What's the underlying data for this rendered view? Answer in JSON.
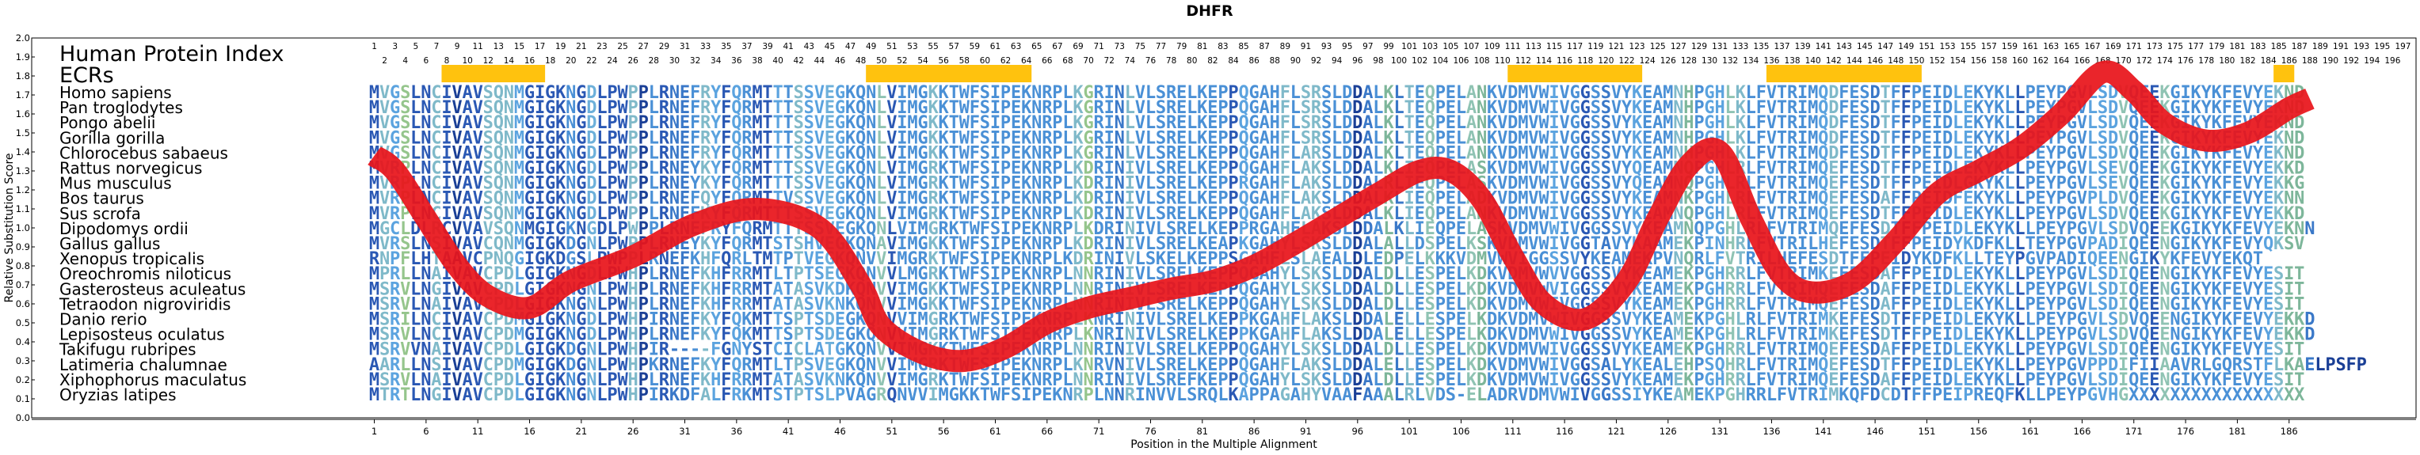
{
  "chart_data": {
    "type": "line",
    "title": "DHFR",
    "header_labels": {
      "index": "Human Protein Index",
      "ecrs": "ECRs"
    },
    "xlabel": "Position in the Multiple Alignment",
    "ylabel": "Relative Substitution Score",
    "ylim": [
      0.0,
      2.0
    ],
    "yticks": [
      "0.0",
      "0.1",
      "0.2",
      "0.3",
      "0.4",
      "0.5",
      "0.6",
      "0.7",
      "0.8",
      "0.9",
      "1.0",
      "1.1",
      "1.2",
      "1.3",
      "1.4",
      "1.5",
      "1.6",
      "1.7",
      "1.8",
      "1.9",
      "2.0"
    ],
    "xlim": [
      1,
      197
    ],
    "xticks": [
      1,
      6,
      11,
      16,
      21,
      26,
      31,
      36,
      41,
      46,
      51,
      56,
      61,
      66,
      71,
      76,
      81,
      86,
      91,
      96,
      101,
      106,
      111,
      116,
      121,
      126,
      131,
      136,
      141,
      146,
      151,
      156,
      161,
      166,
      171,
      176,
      181,
      186
    ],
    "human_index_min": 1,
    "human_index_max": 197,
    "ecr_regions": [
      [
        8,
        17
      ],
      [
        49,
        64
      ],
      [
        111,
        123
      ],
      [
        136,
        150
      ],
      [
        185,
        186
      ]
    ],
    "series": [
      {
        "x": [
          1,
          3,
          6,
          9,
          12,
          16,
          20,
          26,
          32,
          38,
          44,
          48,
          50,
          54,
          58,
          62,
          66,
          70,
          74,
          78,
          82,
          86,
          90,
          94,
          98,
          102,
          105,
          108,
          111,
          114,
          118,
          122,
          125,
          128,
          131,
          134,
          137,
          140,
          144,
          148,
          152,
          156,
          160,
          164,
          168,
          171,
          174,
          178,
          182,
          186,
          188
        ],
        "y": [
          1.38,
          1.3,
          1.05,
          0.8,
          0.64,
          0.58,
          0.72,
          0.85,
          1.02,
          1.1,
          1.0,
          0.7,
          0.48,
          0.34,
          0.3,
          0.37,
          0.5,
          0.58,
          0.63,
          0.68,
          0.72,
          0.8,
          0.92,
          1.05,
          1.18,
          1.3,
          1.3,
          1.15,
          0.85,
          0.6,
          0.52,
          0.72,
          1.05,
          1.33,
          1.4,
          1.05,
          0.75,
          0.66,
          0.72,
          0.93,
          1.18,
          1.3,
          1.42,
          1.6,
          1.82,
          1.72,
          1.55,
          1.46,
          1.5,
          1.63,
          1.68
        ]
      }
    ],
    "species": [
      {
        "name": "Homo sapiens",
        "seq": "MVGSLNCIVAVSQNMGIGKNGDLPWPPLRNEFRYFQRMTTTSSVEGKQNLVIMGKKTWFSIPEKNRPLKGRINLVLSRELKEPPQGAHFLSRSLDDALKLTEQPELANKVDMVWIVGGSSVYKEAMNHPGHLKLFVTRIMQDFESDTFFPEIDLEKYKLLPEYPGVLSDVQEEKGIKYKFEVYEKND"
      },
      {
        "name": "Pan troglodytes",
        "seq": "MVGSLNCIVAVSQNMGIGKNGDLPWPPLRNEFRYFQRMTTTSSVEGKQNLVIMGKKTWFSIPEKNRPLKGRINLVLSRELKEPPQGAHFLSRSLDDALKLTEQPELANKVDMVWIVGGSSVYKEAMNHPGHLKLFVTRIMQDFESDTFFPEIDLEKYKLLPEYPGVLSDVQEEKGIKYKFEVYEKND"
      },
      {
        "name": "Pongo abelii",
        "seq": "MVGSLNCIVAVSQNMGIGKNGDLPWPPLRNEFRYFQRMTTTSSVEGKQNLVIMGKKTWFSIPEKNRPLKGRINLVLSRELKEPPQGAHFLSRSLDDALKLTEQPELANKVDMVWIVGGSSVYKEAMNHPGHLKLFVTRIMQDFESDTFFPEIDLEKYKLLPEYPGVLSDVQEEKGIKYKFEVYEKND"
      },
      {
        "name": "Gorilla gorilla",
        "seq": "MVGSLNCIVAVSQNMGIGKNGDLPWPPLRNEFRYFQRMTTTSSVEGKQNLVIMGKKTWFSIPEKNRPLKGRINLVLSRELKEPPQGAHFLSRSLDDALKLTEQPELANKVDMVWIVGGSSVYKEAMNHPGHLKLFVTRIMQDFESDTFFPEIDLEKYKLLPEYPGVLSDVQEEKGIKYKFEVYEKND"
      },
      {
        "name": "Chlorocebus sabaeus",
        "seq": "MVGSLNCIVAVSQNMGIGKNGDLPWPPLRNEFRYFQRMTTTSSVEGKQNLVIMGKKTWFSIPEKNRPLKGRINLVLSRELKEPPQGAHFLARSLDDALKLTEQPELANKVDMVWIVGGSSVYKEAMNHPGHLKLFVTRIMQDFESDTFFPEIDLEKYKLLPEYPGVLSDVQEEKGIKYKFEVYEKND"
      },
      {
        "name": "Rattus norvegicus",
        "seq": "MVRPLNCIVAVSQNMGIGKNGDLPWPPLRNEYKYFQRMTTTSSVEGKQNLVIMGRKTWFSIPEKNRPLKDRINIVLSRELKEPPQGAHFLAKSLDDALKLIEQPELASKVDMVWIVGGSSVYQEAMNQPGHLRLFVTRIMQEFESDTFFPEIDLEKYKLLPEYPGVLSEVQEEKGIKYKFEVYEKKD"
      },
      {
        "name": "Mus musculus",
        "seq": "MVRPLNCIVAVSQNMGIGKNGDLPWPPLRNEYKYFQRMTTTSSVEGKQNLVIMGRKTWFSIPEKNRPLKDRINIVLSRELKEPPRGAHFLAKSLDDALRLIEQPELASKVDMVWIVGGSSVYQEAMNQPGHLRLFVTRIMQEFESDTFFPEIDLGKYKLLPEYPGVLSEVQEEKGIKYKFEVYEKKG"
      },
      {
        "name": "Bos taurus",
        "seq": "MVRPLNCIVAVSQNMGIGKNGDLPWPPLRNEFQYFQRMTTVSSVEGKQNLVIMGRKTWFSIPEKNRPLKDRINIVLSRELKEPPQGAHFLAKSLDDALKLIEQPELADKVDMVWIVGGSSVYKEAMNKPGHLRLFVTRIMQEFESDAFFPEIDFEKYKLLPEYPGVPLDVQEEKGIKYKFEVYEKNN"
      },
      {
        "name": "Sus scrofa",
        "seq": "MVRPLNCIVAVSQNMGIGKNGDLPWPPLRNEFKYFQRMTTTSSVEGKQNLVIMGRKTWFSIPEKNRPLKDRINIVLSRELKEPPQGAHFLAKSLDDALKLIEQPELANKVDMVWIVGGSSVYKEAMNQPGHLRLFVTRIMQEFESDTFFPEIDLEKYKLLPEYPGVLSDVQEEKGIKYKFEVYEKKD"
      },
      {
        "name": "Dipodomys ordii",
        "seq": "MGCLDLRCVVAVSQNMGIGKNGDLPWPPLRNEFRYFQRMTTTSSVEGKQNLVIMGRKTWFSIPEKNRPLKDRINIVLSRELKEPPRGAHFLAKSLDDALKLIEQPELASKVDMVWIVGGSSVYKEAMNQPGHLRLFVTRIMQEFESDTFFPEIDLEKYKLLPEYPGVLSDVQEEKGIKYKFEVYEKNN"
      },
      {
        "name": "Gallus gallus",
        "seq": "MVRSLNSIVAVCQNMGIGKDGNLPWPPLRNEYKYFQRMTSTSHVEGKQNAVIMGKKTWFSIPEKNRPLKDRINIVLSRELKEAPKGAHYLSKSLDDALALLDSPELKSKVDMVWIVGGTAVYKAAMEKPINHRLFVTRILHEFESDTFFPEIDYKDFKLLTEYPGVPADIQEENGIKYKFEVYQKSV"
      },
      {
        "name": "Xenopus tropicalis",
        "seq": "RNPFLHTAAVCPNQGIGKDGSLPWPPLRNEFKHFQRLTMTPTVEGKQNVVIMGRKTWFSIPEKNRPLKDRINIVLSKELKEPPSGAHFLSLAEALDLEDPELKKKVDMVWVIGGSSVYKEAMEKPVNQRLFVTRILHEFESDTFFPEIDYKDFKLLTEYPGVPADIQEENGIKYKFEVYEKQT"
      },
      {
        "name": "Oreochromis niloticus",
        "seq": "MPRLLNAIVAVCPDLGIGKNGDLPWHPLRNEFKHFRRMTLTPTSEGKQNVVLMGRKTWFSIPEKNRPLNNRINIVLSRELKEPPQGAHYLSKSLDDALDLLESPELKDKVDMVWVVGGSSVYKEAMEKPGHRRLFVTRIMKEFESDAFFPEIDLEKYKLLPEYPGVLSDIQEENGIKYKFEVYESIT"
      },
      {
        "name": "Gasterosteus aculeatus",
        "seq": "MSRVLNGIVAVCPDLGIGKNGNLPWHPLRNEFKHFRRMTATASVKDKQNVVIMGKKTWFSIPEKNRPLNNRINIVLSRELKEPPQGAHYLSKSLDDALDLLESPELKDKVDMVWVIGGSSVYKEAMEKPGHRRLFVTRIMQEFESDAFFPEIDLEKYKLLPEYPGVLSDIQEENGIKYKFEVYESIT"
      },
      {
        "name": "Tetraodon nigroviridis",
        "seq": "MSRVLNAIVAVCPDLGIGKNGNLPWHPLRNEFKHFRRMTATASVKNKQNVVIMGKKTWFSIPEKNRPLNNRINIVLSRELKEPPQGAHYLSKSLDDALDLLESPELKDKVDMVWIVGGSSVYKEAMEKPGHRRLFVTRIMQEFESDAFFPEIDLEKYKLLPEYPGVLSDIQEENGIKYKFEVYESIT"
      },
      {
        "name": "Danio rerio",
        "seq": "MSRILNCIVAVCPDMGIGKNGDLPWHPIRNEFKYFQKMTTSPTSDEGKQNVVIMGRKTWFSIPEKNRPLKNRINIVLSRELKEPPKGAHFLAKSLDDALELLESPELKDKVDMVWIVGGSSVYKEAMEKPGHLRLFVTRIMKEFESDTFFPEIDLEKYKLLPEYPGVLSDVQEENGIKYKFEVYEKKD"
      },
      {
        "name": "Lepisosteus oculatus",
        "seq": "MSRVLNCIVAVCPDMGIGKNGDLPWHPLRNEFKYFQKMTTSPTSDEGKQNVVIMGRKTWFSIPEKNRPLKNRINIVLSRELKEPPKGAHFLAKSLDDALELLESPELKDKVDMVWIVGGSSVYKEAMEKPGHLRLFVTRIMKEFESDTFFPEIDLEKYKLLPEYPGVLSDVQEENGIKYKFEVYEKKD"
      },
      {
        "name": "Takifugu rubripes",
        "seq": "MSRVVNAIVAVCPDLGIGKDGNLPWHPIR----FGNYSTCICLATGKQNVVIMGKKTWFSIPEKNRPLNNRINIVLSRELKEPPQGAHYLSKSLDDALDLLESPELKDKVDMVWIVGGSSVYKEAMEKPGHRRLFVTRIMQEFESDAFFPEIDLEKYKLLPEYPGVLSDIQEENGIKYKFEVYESIT"
      },
      {
        "name": "Latimeria chalumnae",
        "seq": "AARLLNSIVAVCPDMGIGKDGNLPWHPKRNEFKYFQRMTLTPSVEGKQNVVIMGRKTWFSIPEKNRPLKNRVNIVLSRELKEPPQGAHFLAKSLDDALELLESPELKDKVDMVWIVGGSALYKEALEHPSQHRLFVTRIMQEFESDTFFPEIDLEKYKLLPEYPGVPPDIFIIAAVRLGQRSTFLKAELPSFP"
      },
      {
        "name": "Xiphophorus maculatus",
        "seq": "MSRVLNAIVAVCPDLGIGKNGNLPWHPLRNEFKHFRRMTATASVKNKQNVVIMGRKTWFSIPEKNRPLNNRINIVLSREFKEPPQGAHYLSKSLDDALDLLESPELKDKVDMVWIVGGSSVYKEAMEKPGHRRLFVTRIMQEFESDAFFPEIDLEKYKLLPEYPGVLSDIQEENGIKYKFEVYESIT"
      },
      {
        "name": "Oryzias latipes",
        "seq": "MTRTLNGIVAVCPDLGIGKNGNLPWHPIRKDFALFRKMTSTPTSLPVAGRQNVVIMGKKTWFSIPEKNRPLNNRINVVLSRQLKAPPAGAHYVAAFAAALRLVDS-ELADRVDMVWIVGGSSIYKEAMEKPGHRRLFVTRIMKQFDCDTFFPEIPREQFKLLPEYPGVHGXXXXXXXXXXXXXXXXX"
      }
    ]
  }
}
